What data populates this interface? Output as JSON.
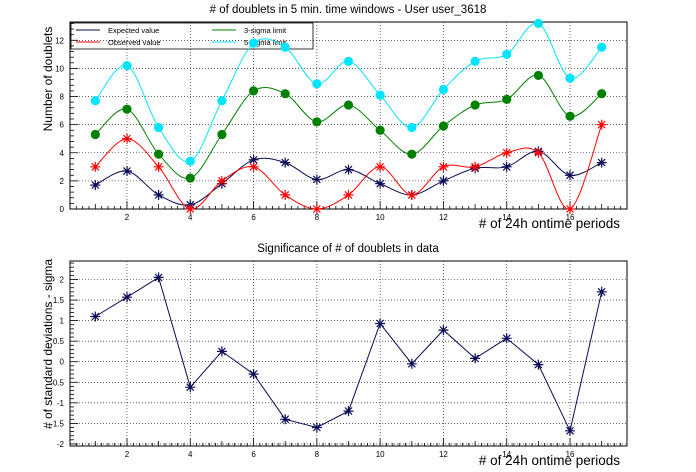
{
  "colors": {
    "expected": "#0a0a55",
    "observed": "#ff0000",
    "sigma3": "#008000",
    "sigma5": "#00e5ff",
    "significance": "#0a0a55"
  },
  "chart_data": [
    {
      "type": "line",
      "title": "# of doublets in 5 min. time windows - User user_3618",
      "xlabel": "# of 24h ontime periods",
      "ylabel": "Number of doublets",
      "xlim": [
        0.2,
        17.8
      ],
      "ylim": [
        0,
        13.3
      ],
      "xticks": [
        2,
        4,
        6,
        8,
        10,
        12,
        14,
        16
      ],
      "xtick_labels": [
        "2",
        "4",
        "6",
        "8",
        "10",
        "12",
        "14",
        "16"
      ],
      "yticks": [
        0,
        2,
        4,
        6,
        8,
        10,
        12
      ],
      "ytick_labels": [
        "0",
        "2",
        "4",
        "6",
        "8",
        "10",
        "12"
      ],
      "grid": true,
      "legend_position": "top-left",
      "x": [
        1,
        2,
        3,
        4,
        5,
        6,
        7,
        8,
        9,
        10,
        11,
        12,
        13,
        14,
        15,
        16,
        17
      ],
      "series": [
        {
          "name": "Expected value",
          "marker": "star",
          "color_key": "expected",
          "values": [
            1.7,
            2.7,
            1.0,
            0.3,
            1.8,
            3.5,
            3.3,
            2.1,
            2.8,
            1.8,
            1.0,
            2.0,
            2.9,
            3.0,
            4.1,
            2.4,
            3.3
          ]
        },
        {
          "name": "Observed value",
          "marker": "star",
          "color_key": "observed",
          "values": [
            3,
            5,
            3,
            0,
            2,
            3,
            1,
            0,
            1,
            3,
            1,
            3,
            3,
            4,
            4,
            0,
            6
          ]
        },
        {
          "name": "3-sigma limit",
          "marker": "circle",
          "color_key": "sigma3",
          "values": [
            5.3,
            7.1,
            3.9,
            2.2,
            5.3,
            8.4,
            8.2,
            6.2,
            7.4,
            5.6,
            3.9,
            5.9,
            7.4,
            7.8,
            9.5,
            6.6,
            8.2
          ]
        },
        {
          "name": "5-sigma limit",
          "marker": "circle",
          "color_key": "sigma5",
          "values": [
            7.7,
            10.2,
            5.8,
            3.4,
            7.7,
            11.8,
            11.5,
            8.9,
            10.5,
            8.1,
            5.8,
            8.5,
            10.5,
            11.0,
            13.2,
            9.3,
            11.5
          ]
        }
      ]
    },
    {
      "type": "line",
      "title": "Significance of # of doublets in data",
      "xlabel": "# of 24h ontime periods",
      "ylabel": "# of standard deviations - sigma",
      "xlim": [
        0.2,
        17.8
      ],
      "ylim": [
        -2.05,
        2.45
      ],
      "xticks": [
        2,
        4,
        6,
        8,
        10,
        12,
        14,
        16
      ],
      "xtick_labels": [
        "2",
        "4",
        "6",
        "8",
        "10",
        "12",
        "14",
        "16"
      ],
      "yticks": [
        -2,
        -1.5,
        -1,
        -0.5,
        0,
        0.5,
        1,
        1.5,
        2
      ],
      "ytick_labels": [
        "-2",
        "-1.5",
        "-1",
        "-0.5",
        "0",
        "0.5",
        "1",
        "1.5",
        "2"
      ],
      "grid": true,
      "x": [
        1,
        2,
        3,
        4,
        5,
        6,
        7,
        8,
        9,
        10,
        11,
        12,
        13,
        14,
        15,
        16,
        17
      ],
      "series": [
        {
          "marker": "star",
          "color_key": "significance",
          "values": [
            1.1,
            1.57,
            2.05,
            -0.62,
            0.25,
            -0.3,
            -1.4,
            -1.6,
            -1.2,
            0.93,
            -0.05,
            0.77,
            0.08,
            0.57,
            -0.07,
            -1.68,
            1.7
          ]
        }
      ]
    }
  ]
}
